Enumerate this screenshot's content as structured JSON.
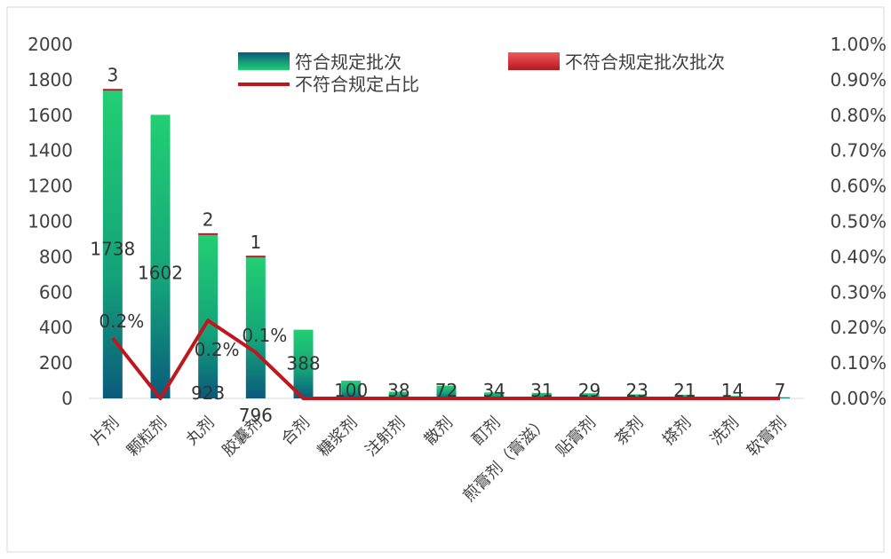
{
  "chart_data": {
    "type": "bar",
    "stacked": true,
    "categories": [
      "片剂",
      "颗粒剂",
      "丸剂",
      "胶囊剂",
      "合剂",
      "糖浆剂",
      "注射剂",
      "散剂",
      "酊剂",
      "煎膏剂（膏滋）",
      "贴膏剂",
      "茶剂",
      "搽剂",
      "洗剂",
      "软膏剂"
    ],
    "series": [
      {
        "name": "符合规定批次",
        "axis": "left",
        "color": "#1fb86e",
        "values": [
          1738,
          1602,
          923,
          796,
          388,
          100,
          38,
          72,
          34,
          31,
          29,
          23,
          21,
          14,
          7
        ],
        "labels": [
          "1738",
          "1602",
          "923",
          "796",
          "388",
          "100",
          "38",
          "72",
          "34",
          "31",
          "29",
          "23",
          "21",
          "14",
          "7"
        ]
      },
      {
        "name": "不符合规定批次批次",
        "axis": "left",
        "color": "#d9333a",
        "values": [
          3,
          0,
          2,
          1,
          0,
          0,
          0,
          0,
          0,
          0,
          0,
          0,
          0,
          0,
          0
        ],
        "labels": [
          "3",
          "",
          "2",
          "1",
          "",
          "",
          "",
          "",
          "",
          "",
          "",
          "",
          "",
          "",
          ""
        ]
      },
      {
        "name": "不符合规定占比",
        "type": "line",
        "axis": "right",
        "color": "#c0161e",
        "values": [
          0.17,
          0,
          0.22,
          0.13,
          0,
          0,
          0,
          0,
          0,
          0,
          0,
          0,
          0,
          0,
          0
        ],
        "labels": [
          "0.2%",
          "",
          "0.2%",
          "0.1%",
          "",
          "",
          "",
          "",
          "",
          "",
          "",
          "",
          "",
          "",
          ""
        ]
      }
    ],
    "y_left": {
      "min": 0,
      "max": 2000,
      "ticks": [
        "0",
        "200",
        "400",
        "600",
        "800",
        "1000",
        "1200",
        "1400",
        "1600",
        "1800",
        "2000"
      ]
    },
    "y_right": {
      "min": 0,
      "max": 1.0,
      "ticks": [
        "0.00%",
        "0.10%",
        "0.20%",
        "0.30%",
        "0.40%",
        "0.50%",
        "0.60%",
        "0.70%",
        "0.80%",
        "0.90%",
        "1.00%"
      ]
    },
    "grid": false,
    "legend_position": "top"
  }
}
